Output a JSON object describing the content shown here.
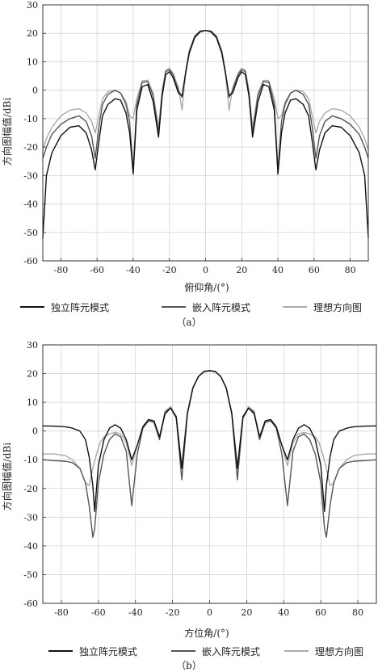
{
  "chart_data": [
    {
      "type": "line",
      "subcaption": "（a）",
      "xlabel": "俯仰角/(°)",
      "ylabel": "方向图幅值/dBi",
      "xlim": [
        -90,
        90
      ],
      "ylim": [
        -60,
        30
      ],
      "xticks": [
        -80,
        -60,
        -40,
        -20,
        0,
        20,
        40,
        60,
        80
      ],
      "yticks": [
        -60,
        -50,
        -40,
        -30,
        -20,
        -10,
        0,
        10,
        20,
        30
      ],
      "grid": true,
      "legend_position": "bottom",
      "series": [
        {
          "name": "独立阵元模式",
          "color": "#111111",
          "x": [
            -90,
            -88,
            -85,
            -80,
            -75,
            -70,
            -66,
            -63,
            -61,
            -59,
            -57,
            -54,
            -50,
            -47,
            -44,
            -42,
            -40,
            -38,
            -35,
            -32,
            -29,
            -26,
            -24,
            -22,
            -20,
            -18,
            -15,
            -13,
            -11,
            -9,
            -6,
            -3,
            0,
            3,
            6,
            9,
            11,
            13,
            15,
            18,
            20,
            22,
            24,
            26,
            29,
            32,
            35,
            38,
            40,
            42,
            44,
            47,
            50,
            54,
            57,
            59,
            61,
            63,
            66,
            70,
            75,
            80,
            85,
            88,
            90
          ],
          "y": [
            -52,
            -30,
            -22,
            -16,
            -13,
            -12.5,
            -15,
            -21,
            -28,
            -18,
            -9,
            -5,
            -3,
            -3.5,
            -8,
            -15,
            -29.5,
            -7,
            1.2,
            2,
            -4,
            -16.5,
            -2,
            5.5,
            6.5,
            4.5,
            -1,
            -2,
            6,
            13,
            18.5,
            20.5,
            21,
            20.5,
            18.5,
            13,
            6,
            -2,
            -1,
            4.5,
            6.5,
            5.5,
            -2,
            -16.5,
            -4,
            2,
            1.2,
            -7,
            -29.5,
            -15,
            -8,
            -3.5,
            -3,
            -5,
            -9,
            -18,
            -28,
            -21,
            -15,
            -12.5,
            -13,
            -16,
            -22,
            -30,
            -52
          ]
        },
        {
          "name": "嵌入阵元模式",
          "color": "#555555",
          "x": [
            -90,
            -88,
            -85,
            -80,
            -75,
            -70,
            -66,
            -63,
            -61,
            -59,
            -57,
            -54,
            -50,
            -47,
            -44,
            -42,
            -40,
            -38,
            -35,
            -32,
            -29,
            -26,
            -24,
            -22,
            -20,
            -18,
            -15,
            -13,
            -11,
            -9,
            -6,
            -3,
            0,
            3,
            6,
            9,
            11,
            13,
            15,
            18,
            20,
            22,
            24,
            26,
            29,
            32,
            35,
            38,
            40,
            42,
            44,
            47,
            50,
            54,
            57,
            59,
            61,
            63,
            66,
            70,
            75,
            80,
            85,
            88,
            90
          ],
          "y": [
            -24,
            -20,
            -15.5,
            -12,
            -10,
            -9,
            -11,
            -16,
            -24,
            -13,
            -5,
            -1.5,
            0,
            -1,
            -5,
            -11,
            -28.5,
            -5,
            2.8,
            3,
            -2,
            -15,
            -1,
            6.5,
            7.2,
            5.5,
            0,
            -2.5,
            6.5,
            13.5,
            19,
            20.8,
            21,
            20.8,
            19,
            13.5,
            6.5,
            -2.5,
            0,
            5.5,
            7.2,
            6.5,
            -1,
            -15,
            -2,
            3,
            2.8,
            -5,
            -28.5,
            -11,
            -5,
            -1,
            0,
            -1.5,
            -5,
            -13,
            -24,
            -16,
            -11,
            -9,
            -10,
            -12,
            -15.5,
            -20,
            -24
          ]
        },
        {
          "name": "理想方向图",
          "color": "#aaaaaa",
          "x": [
            -90,
            -88,
            -85,
            -80,
            -75,
            -70,
            -66,
            -63,
            -61,
            -59,
            -57,
            -54,
            -50,
            -47,
            -44,
            -42,
            -40,
            -38,
            -35,
            -32,
            -29,
            -26,
            -24,
            -22,
            -20,
            -18,
            -15,
            -13,
            -11,
            -9,
            -6,
            -3,
            0,
            3,
            6,
            9,
            11,
            13,
            15,
            18,
            20,
            22,
            24,
            26,
            29,
            32,
            35,
            38,
            40,
            42,
            44,
            47,
            50,
            54,
            57,
            59,
            61,
            63,
            66,
            70,
            75,
            80,
            85,
            88,
            90
          ],
          "y": [
            -21,
            -17,
            -13,
            -9,
            -7,
            -6.5,
            -8,
            -11,
            -15,
            -9,
            -3,
            -0.5,
            0,
            -1,
            -4,
            -9,
            -10,
            -3,
            3.3,
            3.5,
            -1,
            -13,
            0,
            7,
            7.8,
            6,
            1,
            -7,
            6.5,
            14,
            19,
            20.8,
            21,
            20.8,
            19,
            14,
            6.5,
            -7,
            1,
            6,
            7.8,
            7,
            0,
            -13,
            -1,
            3.5,
            3.3,
            -3,
            -10,
            -9,
            -4,
            -1,
            0,
            -0.5,
            -3,
            -9,
            -15,
            -11,
            -8,
            -6.5,
            -7,
            -9,
            -13,
            -17,
            -21
          ]
        }
      ]
    },
    {
      "type": "line",
      "subcaption": "（b）",
      "xlabel": "方位角/(°)",
      "ylabel": "方向图幅值/dBi",
      "xlim": [
        -90,
        90
      ],
      "ylim": [
        -60,
        30
      ],
      "xticks": [
        -80,
        -60,
        -40,
        -20,
        0,
        20,
        40,
        60,
        80
      ],
      "yticks": [
        -60,
        -50,
        -40,
        -30,
        -20,
        -10,
        0,
        10,
        20,
        30
      ],
      "grid": true,
      "legend_position": "bottom",
      "series": [
        {
          "name": "独立阵元模式",
          "color": "#111111",
          "x": [
            -90,
            -84,
            -78,
            -74,
            -70,
            -67,
            -65,
            -63,
            -62,
            -60,
            -57,
            -54,
            -51,
            -48,
            -45,
            -42,
            -39,
            -36,
            -33,
            -30,
            -27,
            -24,
            -21,
            -18,
            -15,
            -12,
            -9,
            -6,
            -3,
            0,
            3,
            6,
            9,
            12,
            15,
            18,
            21,
            24,
            27,
            30,
            33,
            36,
            39,
            42,
            45,
            48,
            51,
            54,
            57,
            60,
            62,
            63,
            65,
            67,
            70,
            74,
            78,
            84,
            90
          ],
          "y": [
            1.8,
            1.7,
            1.5,
            1,
            0,
            -3,
            -9,
            -19,
            -28,
            -12,
            -3,
            1,
            2.2,
            1,
            -3,
            -10,
            -5,
            1.5,
            4,
            3.5,
            -2,
            6,
            8,
            5,
            -13,
            6,
            15,
            19,
            20.7,
            21,
            20.7,
            19,
            15,
            6,
            -13,
            5,
            8,
            6,
            -2,
            3.5,
            4,
            1.5,
            -5,
            -10,
            -3,
            1,
            2.2,
            1,
            -3,
            -12,
            -28,
            -19,
            -9,
            -3,
            0,
            1,
            1.5,
            1.7,
            1.8
          ]
        },
        {
          "name": "嵌入阵元模式",
          "color": "#555555",
          "x": [
            -90,
            -84,
            -78,
            -74,
            -70,
            -67,
            -65,
            -63,
            -62,
            -60,
            -57,
            -54,
            -51,
            -48,
            -45,
            -42,
            -39,
            -36,
            -33,
            -30,
            -27,
            -24,
            -21,
            -18,
            -15,
            -12,
            -9,
            -6,
            -3,
            0,
            3,
            6,
            9,
            12,
            15,
            18,
            21,
            24,
            27,
            30,
            33,
            36,
            39,
            42,
            45,
            48,
            51,
            54,
            57,
            60,
            62,
            63,
            65,
            67,
            70,
            74,
            78,
            84,
            90
          ],
          "y": [
            -10,
            -10.3,
            -10.5,
            -11,
            -13,
            -18,
            -26,
            -37,
            -34,
            -18,
            -8,
            -3,
            -1,
            -2,
            -7,
            -26,
            -8,
            1,
            3.5,
            3,
            -3,
            6.5,
            8,
            4.5,
            -17,
            6,
            15,
            19,
            20.8,
            21,
            20.8,
            19,
            15,
            6,
            -17,
            4.5,
            8,
            6.5,
            -3,
            3,
            3.5,
            1,
            -8,
            -26,
            -7,
            -2,
            -1,
            -3,
            -8,
            -18,
            -34,
            -37,
            -26,
            -18,
            -13,
            -11,
            -10.5,
            -10.3,
            -10
          ]
        },
        {
          "name": "理想方向图",
          "color": "#aaaaaa",
          "x": [
            -90,
            -84,
            -78,
            -74,
            -70,
            -67,
            -65,
            -63,
            -61,
            -59,
            -57,
            -54,
            -51,
            -48,
            -45,
            -42,
            -39,
            -36,
            -33,
            -30,
            -27,
            -24,
            -21,
            -18,
            -15,
            -12,
            -9,
            -6,
            -3,
            0,
            3,
            6,
            9,
            12,
            15,
            18,
            21,
            24,
            27,
            30,
            33,
            36,
            39,
            42,
            45,
            48,
            51,
            54,
            57,
            59,
            61,
            63,
            65,
            67,
            70,
            74,
            78,
            84,
            90
          ],
          "y": [
            -8,
            -8,
            -8.5,
            -10,
            -13,
            -18,
            -19,
            -13,
            -8,
            -4,
            -2,
            -1,
            -0.5,
            -1,
            -4,
            -12,
            -5,
            1.5,
            4,
            3.5,
            -2,
            7,
            8.5,
            5,
            -12,
            6.5,
            15,
            19,
            20.8,
            21,
            20.8,
            19,
            15,
            6.5,
            -12,
            5,
            8.5,
            7,
            -2,
            3.5,
            4,
            1.5,
            -5,
            -12,
            -4,
            -1,
            -0.5,
            -1,
            -2,
            -4,
            -8,
            -13,
            -19,
            -18,
            -13,
            -10,
            -8.5,
            -8,
            -8
          ]
        }
      ]
    }
  ]
}
